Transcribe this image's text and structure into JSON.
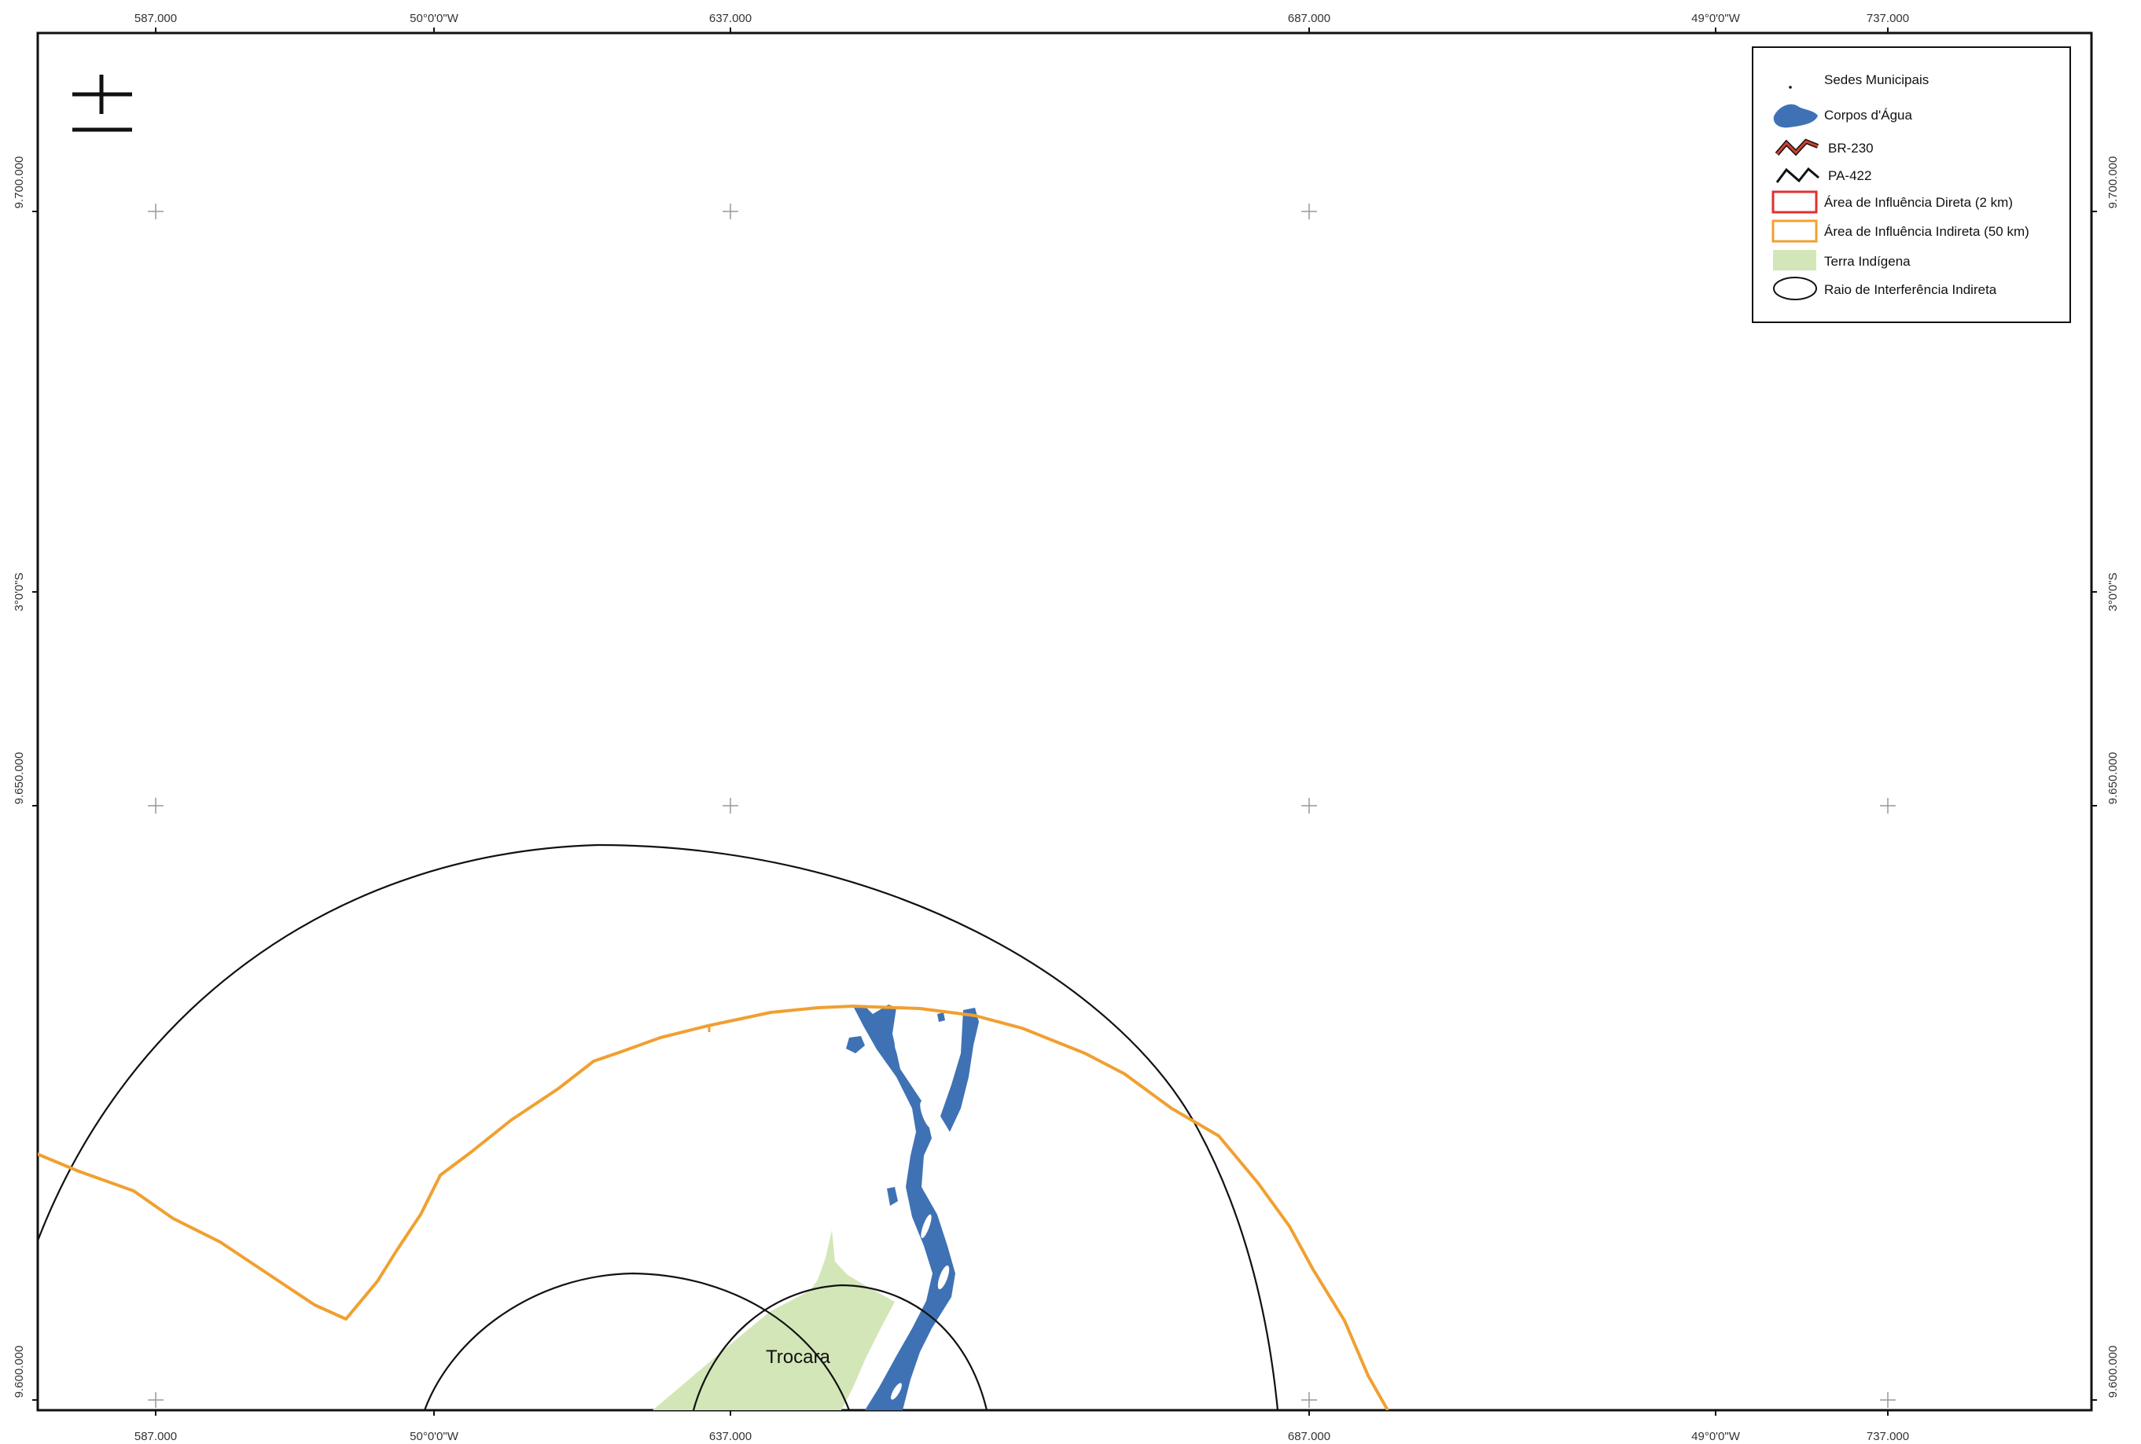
{
  "map": {
    "top_ticks": [
      {
        "label": "587.000",
        "kind": "utm-easting"
      },
      {
        "label": "50°0'0\"W",
        "kind": "longitude"
      },
      {
        "label": "637.000",
        "kind": "utm-easting"
      },
      {
        "label": "687.000",
        "kind": "utm-easting"
      },
      {
        "label": "49°0'0\"W",
        "kind": "longitude"
      },
      {
        "label": "737.000",
        "kind": "utm-easting"
      }
    ],
    "bottom_ticks": [
      {
        "label": "587.000"
      },
      {
        "label": "50°0'0\"W"
      },
      {
        "label": "637.000"
      },
      {
        "label": "687.000"
      },
      {
        "label": "49°0'0\"W"
      },
      {
        "label": "737.000"
      }
    ],
    "left_ticks": [
      {
        "label": "9.700.000"
      },
      {
        "label": "3°0'0\"S"
      },
      {
        "label": "9.650.000"
      },
      {
        "label": "9.600.000"
      }
    ],
    "right_ticks": [
      {
        "label": "9.700.000"
      },
      {
        "label": "3°0'0\"S"
      },
      {
        "label": "9.650.000"
      },
      {
        "label": "9.600.000"
      }
    ],
    "place_labels": {
      "trocara": "Trocara"
    },
    "colors": {
      "water": "#3f72b4",
      "indigenous_land": "#d3e6b8",
      "aii_outline": "#f0a030",
      "aid_outline": "#e03030",
      "br230": "#d04030",
      "interference_circles": "#111111",
      "grid_cross": "#999999",
      "frame": "#111111"
    }
  },
  "legend": {
    "items": [
      {
        "label": "Sedes Municipais",
        "symbol": "dot"
      },
      {
        "label": "Corpos d'Água",
        "symbol": "water-blob-icon"
      },
      {
        "label": "BR-230",
        "symbol": "br230-line-icon"
      },
      {
        "label": "PA-422",
        "symbol": "pa422-line-icon"
      },
      {
        "label": "Área de Influência Direta (2 km)",
        "symbol": "red-rect-icon"
      },
      {
        "label": "Área de Influência Indireta (50 km)",
        "symbol": "orange-rect-icon"
      },
      {
        "label": "Terra Indígena",
        "symbol": "green-rect-icon"
      },
      {
        "label": "Raio de Interferência Indireta",
        "symbol": "ellipse-icon"
      }
    ]
  }
}
